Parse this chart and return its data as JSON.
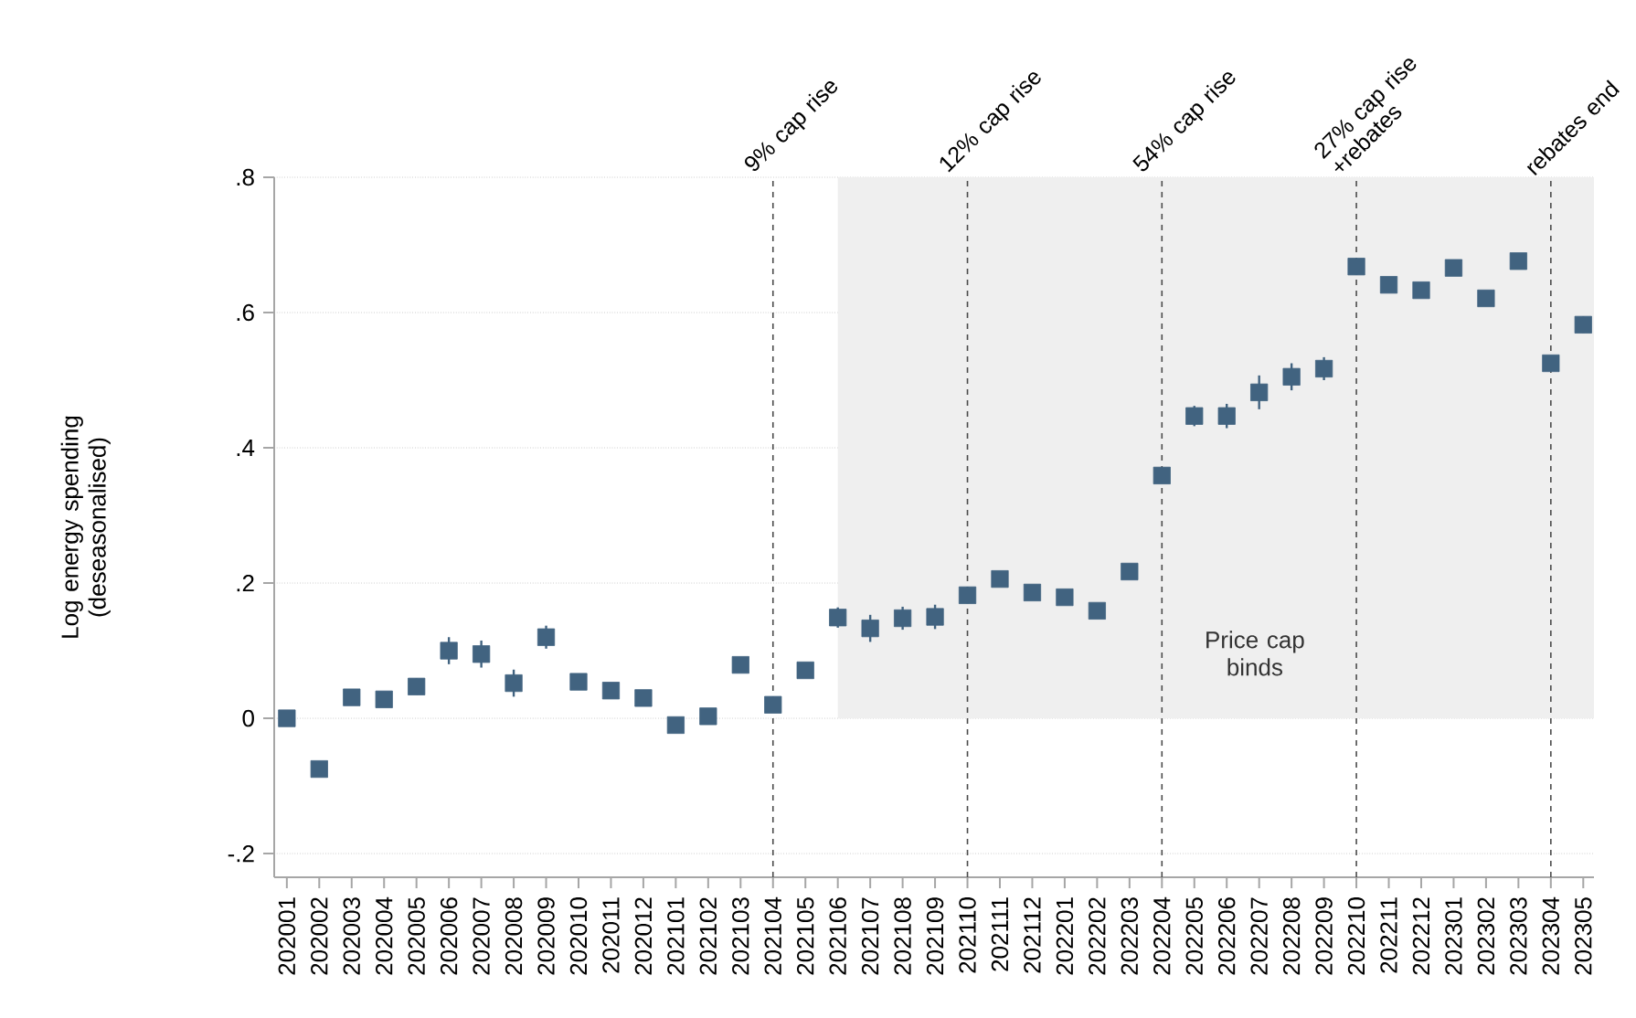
{
  "chart_data": {
    "type": "scatter",
    "ylabel": "Log energy spending (deseasonalised)",
    "categories": [
      "202001",
      "202002",
      "202003",
      "202004",
      "202005",
      "202006",
      "202007",
      "202008",
      "202009",
      "202010",
      "202011",
      "202012",
      "202101",
      "202102",
      "202103",
      "202104",
      "202105",
      "202106",
      "202107",
      "202108",
      "202109",
      "202110",
      "202111",
      "202112",
      "202201",
      "202202",
      "202203",
      "202204",
      "202205",
      "202206",
      "202207",
      "202208",
      "202209",
      "202210",
      "202211",
      "202212",
      "202301",
      "202302",
      "202303",
      "202304",
      "202305"
    ],
    "series": [
      {
        "color": "#416380",
        "marker": "square",
        "values": [
          0.0,
          -0.075,
          0.031,
          0.028,
          0.047,
          0.1,
          0.095,
          0.052,
          0.12,
          0.054,
          0.041,
          0.03,
          -0.01,
          0.003,
          0.079,
          0.02,
          0.071,
          0.149,
          0.133,
          0.148,
          0.15,
          0.182,
          0.206,
          0.186,
          0.179,
          0.159,
          0.217,
          0.359,
          0.447,
          0.447,
          0.482,
          0.505,
          0.517,
          0.668,
          0.641,
          0.633,
          0.666,
          0.621,
          0.676,
          0.525,
          0.582
        ],
        "errors": [
          null,
          null,
          null,
          null,
          0.012,
          0.02,
          0.02,
          0.02,
          0.017,
          null,
          null,
          null,
          null,
          null,
          null,
          null,
          null,
          0.015,
          0.02,
          0.017,
          0.018,
          0.012,
          null,
          null,
          null,
          null,
          null,
          null,
          0.015,
          0.018,
          0.025,
          0.02,
          0.017,
          0.012,
          null,
          null,
          null,
          null,
          null,
          null,
          0.012
        ]
      }
    ],
    "ylim": [
      -0.235,
      0.8
    ],
    "yticks": [
      {
        "value": -0.2,
        "label": "-.2"
      },
      {
        "value": 0,
        "label": "0"
      },
      {
        "value": 0.2,
        "label": ".2"
      },
      {
        "value": 0.4,
        "label": ".4"
      },
      {
        "value": 0.6,
        "label": ".6"
      },
      {
        "value": 0.8,
        "label": ".8"
      }
    ],
    "grid": "y",
    "ref_lines": [
      {
        "axis": "x",
        "value": "202104",
        "label": "9% cap rise",
        "line_style": "dashed"
      },
      {
        "axis": "x",
        "value": "202110",
        "label": "12% cap rise",
        "line_style": "dashed"
      },
      {
        "axis": "x",
        "value": "202204",
        "label": "54% cap rise",
        "line_style": "dashed"
      },
      {
        "axis": "x",
        "value": "202210",
        "label": "27% cap rise +rebates",
        "line_style": "dashed"
      },
      {
        "axis": "x",
        "value": "202304",
        "label": "rebates end",
        "line_style": "dashed"
      }
    ],
    "bands": [
      {
        "axis": "x",
        "from": "202106",
        "to": "202305",
        "label": "Price cap binds",
        "color": "#efefef"
      }
    ]
  }
}
